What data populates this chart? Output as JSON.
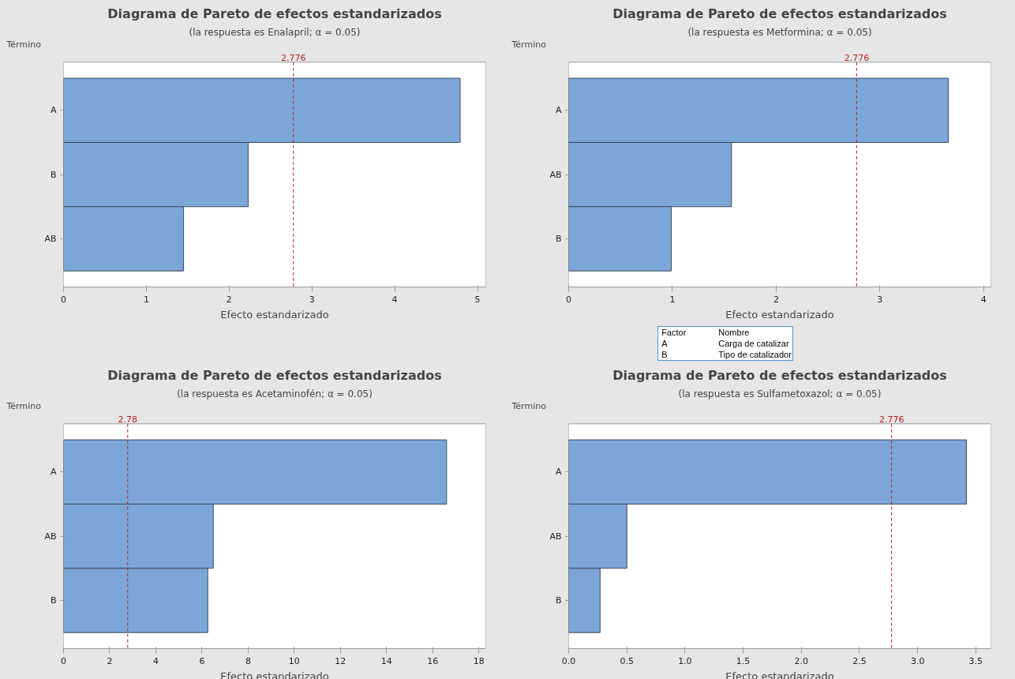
{
  "chart_data": [
    {
      "type": "bar",
      "orientation": "horizontal",
      "title": "Diagrama de Pareto de efectos estandarizados",
      "subtitle": "(la respuesta es Enalapril; α = 0.05)",
      "xlabel": "Efecto estandarizado",
      "ylabel": "Término",
      "categories": [
        "A",
        "B",
        "AB"
      ],
      "values": [
        4.79,
        2.23,
        1.45
      ],
      "color": "#7da6d8",
      "xlim": [
        0,
        5.1
      ],
      "xticks": [
        0,
        1,
        2,
        3,
        4,
        5
      ],
      "ref_lines": [
        {
          "axis": "x",
          "value": 2.776,
          "label": "2.776",
          "color": "#b22222",
          "line_style": "dashed"
        }
      ],
      "annotations": [
        "Factor",
        "Nombre",
        "A",
        "Carga de catalizar",
        "B",
        "Tipo de catalizador"
      ]
    },
    {
      "type": "bar",
      "orientation": "horizontal",
      "title": "Diagrama de Pareto de efectos estandarizados",
      "subtitle": "(la respuesta es Metformina; α = 0.05)",
      "xlabel": "Efecto estandarizado",
      "ylabel": "Término",
      "categories": [
        "A",
        "AB",
        "B"
      ],
      "values": [
        3.66,
        1.57,
        0.99
      ],
      "color": "#7da6d8",
      "xlim": [
        0,
        4.07
      ],
      "xticks": [
        0,
        1,
        2,
        3,
        4
      ],
      "ref_lines": [
        {
          "axis": "x",
          "value": 2.776,
          "label": "2.776",
          "color": "#b22222",
          "line_style": "dashed"
        }
      ]
    },
    {
      "type": "bar",
      "orientation": "horizontal",
      "title": "Diagrama de Pareto de efectos estandarizados",
      "subtitle": "(la respuesta es Acetaminofén; α = 0.05)",
      "xlabel": "Efecto estandarizado",
      "ylabel": "Término",
      "categories": [
        "A",
        "AB",
        "B"
      ],
      "values": [
        16.6,
        6.49,
        6.25
      ],
      "color": "#7da6d8",
      "xlim": [
        0,
        18.3
      ],
      "xticks": [
        0,
        2,
        4,
        6,
        8,
        10,
        12,
        14,
        16,
        18
      ],
      "ref_lines": [
        {
          "axis": "x",
          "value": 2.78,
          "label": "2.78",
          "color": "#b22222",
          "line_style": "dashed"
        }
      ]
    },
    {
      "type": "bar",
      "orientation": "horizontal",
      "title": "Diagrama de Pareto de efectos estandarizados",
      "subtitle": "(la respuesta es Sulfametoxazol; α = 0.05)",
      "xlabel": "Efecto estandarizado",
      "ylabel": "Término",
      "categories": [
        "A",
        "AB",
        "B"
      ],
      "values": [
        3.42,
        0.5,
        0.27
      ],
      "color": "#7da6d8",
      "xlim": [
        0,
        3.63
      ],
      "xticks": [
        {
          "value": 0,
          "label": "0.0"
        },
        {
          "value": 0.5,
          "label": "0.5"
        },
        {
          "value": 1,
          "label": "1.0"
        },
        {
          "value": 1.5,
          "label": "1.5"
        },
        {
          "value": 2,
          "label": "2.0"
        },
        {
          "value": 2.5,
          "label": "2.5"
        },
        {
          "value": 3,
          "label": "3.0"
        },
        {
          "value": 3.5,
          "label": "3.5"
        }
      ],
      "ref_lines": [
        {
          "axis": "x",
          "value": 2.776,
          "label": "2.776",
          "color": "#b22222",
          "line_style": "dashed"
        }
      ]
    }
  ]
}
